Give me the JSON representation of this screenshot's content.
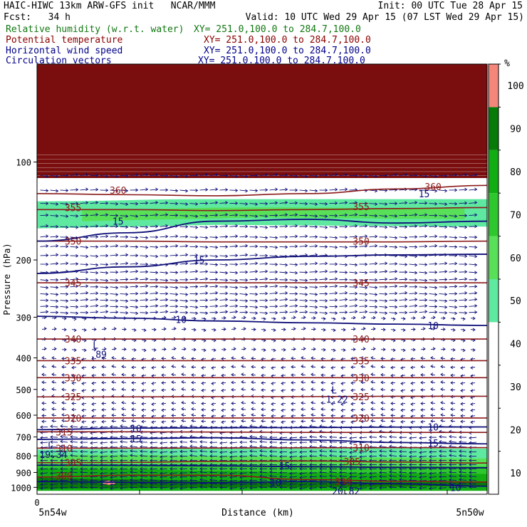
{
  "header": {
    "line1_left": "HAIC-HIWC 13km ARW-GFS init   NCAR/MMM",
    "line1_right": "Init: 00 UTC Tue 28 Apr 15",
    "line2_left": "Fcst:   34 h",
    "line2_right": "Valid: 10 UTC Wed 29 Apr 15 (07 LST Wed 29 Apr 15)",
    "fields": [
      {
        "name": "Relative humidity (w.r.t. water)",
        "xy": "XY= 251.0,100.0 to 284.7,100.0",
        "color": "#117711"
      },
      {
        "name": "Potential temperature",
        "xy": "XY= 251.0,100.0 to 284.7,100.0",
        "color": "#8b0000"
      },
      {
        "name": "Horizontal wind speed",
        "xy": "XY= 251.0,100.0 to 284.7,100.0",
        "color": "#00008b"
      },
      {
        "name": "Circulation vectors",
        "xy": "XY= 251.0,100.0 to 284.7,100.0",
        "color": "#00008b"
      }
    ]
  },
  "colors": {
    "theta": "#8b1a1a",
    "wind": "#10107a",
    "rh_50": "#5ee8a0",
    "rh_60": "#58e058",
    "rh_70": "#2ec82e",
    "rh_80": "#12ad12",
    "rh_90": "#077a07",
    "rh_100": "#f4877a",
    "stable_band": "#7a0e0e"
  },
  "chart_data": {
    "type": "heatmap",
    "ylabel": "Pressure (hPa)",
    "xlabel": "Distance (km)",
    "x_tick_labels": [
      "0"
    ],
    "x_end_labels": [
      "5n54w",
      "5n50w"
    ],
    "x_range": [
      0,
      1
    ],
    "y_ticks": [
      100,
      200,
      300,
      400,
      500,
      600,
      700,
      800,
      900,
      1000
    ],
    "y_range": [
      50,
      1050
    ],
    "y_scale": "log",
    "colorbar": {
      "unit": "%",
      "levels": [
        10,
        20,
        30,
        40,
        50,
        60,
        70,
        80,
        90,
        100
      ],
      "colors": [
        "#ffffff",
        "#ffffff",
        "#ffffff",
        "#ffffff",
        "#5ee8a0",
        "#58e058",
        "#2ec82e",
        "#12ad12",
        "#077a07",
        "#f4877a"
      ]
    },
    "theta_contours": [
      {
        "value": 360,
        "label": "360",
        "p": [
          125,
          126,
          127,
          125,
          121,
          118
        ],
        "label_positions": [
          [
            0.18,
            122
          ],
          [
            0.88,
            119
          ]
        ]
      },
      {
        "value": 355,
        "label": "355",
        "p": [
          140,
          140,
          141,
          140,
          139,
          138
        ],
        "label_positions": [
          [
            0.08,
            138
          ],
          [
            0.72,
            137
          ]
        ]
      },
      {
        "value": 350,
        "label": "350",
        "p": [
          175,
          175,
          176,
          176,
          176,
          175
        ],
        "label_positions": [
          [
            0.08,
            175
          ],
          [
            0.72,
            175
          ]
        ]
      },
      {
        "value": 345,
        "label": "345",
        "p": [
          235,
          235,
          235,
          235,
          235,
          235
        ],
        "label_positions": [
          [
            0.08,
            235
          ],
          [
            0.72,
            235
          ]
        ]
      },
      {
        "value": 340,
        "label": "340",
        "p": [
          350,
          350,
          350,
          350,
          350,
          350
        ],
        "label_positions": [
          [
            0.08,
            350
          ],
          [
            0.72,
            350
          ]
        ]
      },
      {
        "value": 335,
        "label": "335",
        "p": [
          408,
          408,
          408,
          408,
          408,
          408
        ],
        "label_positions": [
          [
            0.08,
            408
          ],
          [
            0.72,
            408
          ]
        ]
      },
      {
        "value": 330,
        "label": "330",
        "p": [
          460,
          460,
          460,
          460,
          460,
          460
        ],
        "label_positions": [
          [
            0.08,
            460
          ],
          [
            0.72,
            460
          ]
        ]
      },
      {
        "value": 325,
        "label": "325",
        "p": [
          527,
          527,
          526,
          526,
          525,
          525
        ],
        "label_positions": [
          [
            0.08,
            527
          ],
          [
            0.72,
            526
          ]
        ]
      },
      {
        "value": 320,
        "label": "320",
        "p": [
          612,
          612,
          612,
          612,
          612,
          612
        ],
        "label_positions": [
          [
            0.08,
            612
          ],
          [
            0.72,
            612
          ]
        ]
      },
      {
        "value": 315,
        "label": "315",
        "p": [
          675,
          675,
          676,
          678,
          678,
          678
        ],
        "label_positions": [
          [
            0.06,
            675
          ]
        ]
      },
      {
        "value": 310,
        "label": "310",
        "p": [
          758,
          758,
          757,
          756,
          755,
          755
        ],
        "label_positions": [
          [
            0.06,
            758
          ],
          [
            0.72,
            755
          ]
        ]
      },
      {
        "value": 305,
        "label": "305",
        "p": [
          840,
          838,
          832,
          830,
          836,
          842
        ],
        "label_positions": [
          [
            0.08,
            840
          ],
          [
            0.7,
            832
          ]
        ]
      },
      {
        "value": 300,
        "label": "300",
        "p": [
          930,
          918,
          918,
          946,
          958,
          963
        ],
        "label_positions": [
          [
            0.06,
            920
          ],
          [
            0.68,
            960
          ]
        ]
      }
    ],
    "wind_contours": [
      {
        "value": 15,
        "label": "15",
        "p": [
          175,
          165,
          152,
          150,
          154,
          152
        ]
      },
      {
        "value": 15,
        "label": "15",
        "p": [
          220,
          210,
          200,
          195,
          193,
          192
        ]
      },
      {
        "value": 10,
        "label": "10",
        "p": [
          298,
          302,
          308,
          312,
          315,
          318
        ]
      },
      {
        "value": 10,
        "label": "10",
        "p": [
          665,
          658,
          656,
          655,
          653,
          652
        ]
      },
      {
        "value": 15,
        "label": "15",
        "p": [
          712,
          708,
          704,
          715,
          728,
          735
        ]
      },
      {
        "value": 15,
        "label": "15",
        "p": [
          855,
          856,
          859,
          864,
          868,
          871
        ]
      },
      {
        "value": 10,
        "label": "10",
        "p": [
          960,
          965,
          968,
          960,
          975,
          992
        ]
      }
    ],
    "wind_contour_labels": [
      {
        "label": "15",
        "x": 0.18,
        "p": 152
      },
      {
        "label": "15",
        "x": 0.86,
        "p": 125
      },
      {
        "label": "15",
        "x": 0.36,
        "p": 200
      },
      {
        "label": "10",
        "x": 0.32,
        "p": 305
      },
      {
        "label": "10",
        "x": 0.88,
        "p": 318
      },
      {
        "label": "10",
        "x": 0.22,
        "p": 658
      },
      {
        "label": "10",
        "x": 0.88,
        "p": 652
      },
      {
        "label": "15",
        "x": 0.22,
        "p": 708
      },
      {
        "label": "15",
        "x": 0.88,
        "p": 730
      },
      {
        "label": "15",
        "x": 0.55,
        "p": 858
      },
      {
        "label": "10",
        "x": 0.53,
        "p": 965
      },
      {
        "label": "10",
        "x": 0.93,
        "p": 1000
      }
    ],
    "lows": [
      {
        "label": "L",
        "x": 0.13,
        "p": 375,
        "value": ".89"
      },
      {
        "label": "L",
        "x": 0.66,
        "p": 515,
        "value": "1.22"
      },
      {
        "label": "L",
        "x": 0.03,
        "p": 760,
        "value": "19.34"
      },
      {
        "label": "L",
        "x": 0.68,
        "p": 985,
        "value": "20.82"
      }
    ]
  }
}
